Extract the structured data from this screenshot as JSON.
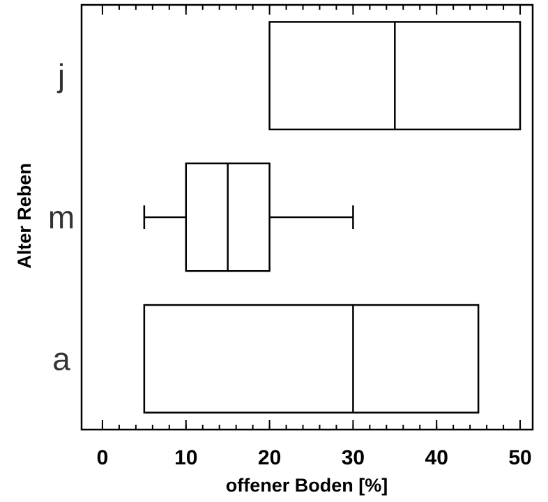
{
  "chart_data": {
    "type": "boxplot",
    "orientation": "horizontal",
    "xlabel": "offener Boden [%]",
    "ylabel": "Alter Reben",
    "xlim": [
      -2.5,
      51.5
    ],
    "xticks": [
      0,
      10,
      20,
      30,
      40,
      50
    ],
    "minor_step": 2,
    "categories": [
      "j",
      "m",
      "a"
    ],
    "boxes": [
      {
        "category": "j",
        "whisker_low": 20,
        "q1": 20,
        "median": 35,
        "q3": 50,
        "whisker_high": 50
      },
      {
        "category": "m",
        "whisker_low": 5,
        "q1": 10,
        "median": 15,
        "q3": 20,
        "whisker_high": 30
      },
      {
        "category": "a",
        "whisker_low": 5,
        "q1": 5,
        "median": 30,
        "q3": 45,
        "whisker_high": 45
      }
    ],
    "grid": false,
    "legend": "none"
  }
}
